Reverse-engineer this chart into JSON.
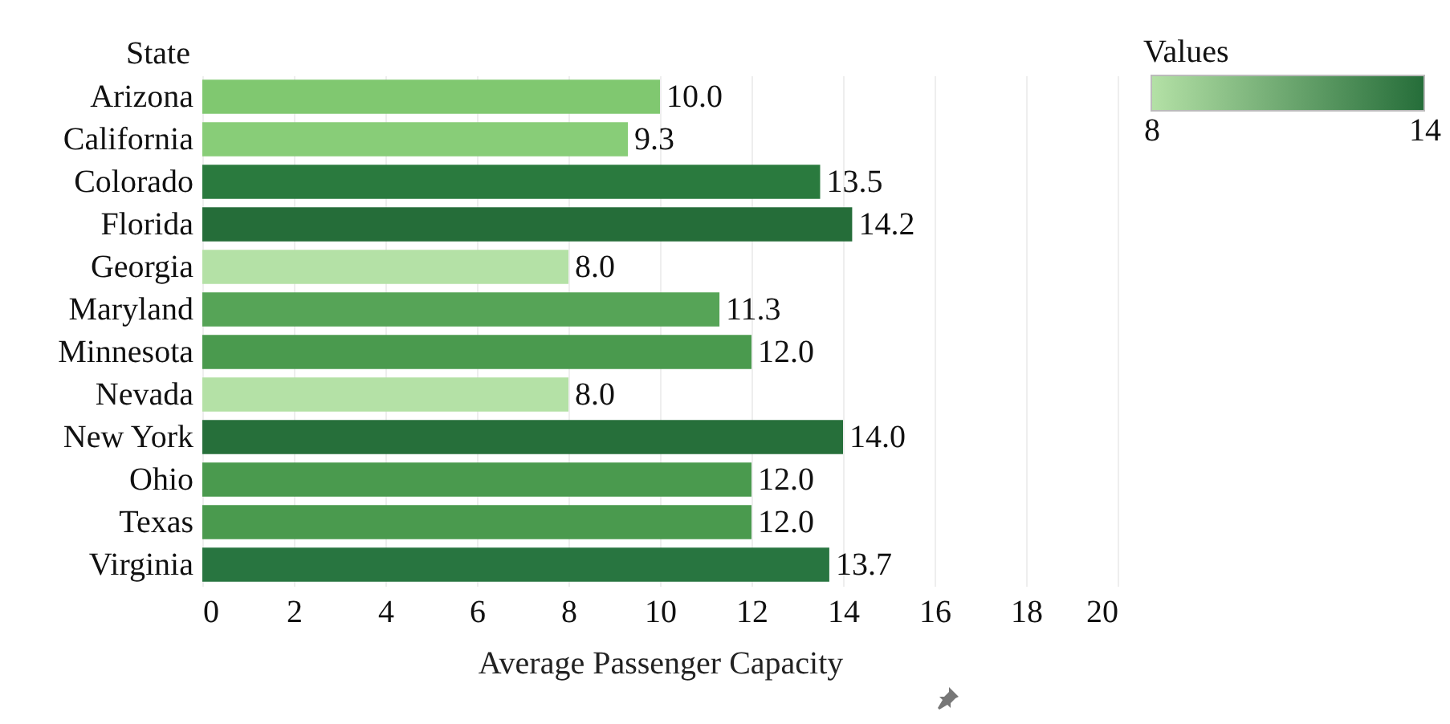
{
  "chart_data": {
    "type": "bar",
    "orientation": "horizontal",
    "ylabel": "State",
    "xlabel": "Average Passenger Capacity",
    "clabel": "Values",
    "clim": [
      8,
      14
    ],
    "cticks": [
      8,
      14
    ],
    "categories": [
      "Arizona",
      "California",
      "Colorado",
      "Florida",
      "Georgia",
      "Maryland",
      "Minnesota",
      "Nevada",
      "New York",
      "Ohio",
      "Texas",
      "Virginia"
    ],
    "values": [
      10.0,
      9.3,
      13.5,
      14.2,
      8.0,
      11.3,
      12.0,
      8.0,
      14.0,
      12.0,
      12.0,
      13.7
    ],
    "value_labels": [
      "10.0",
      "9.3",
      "13.5",
      "14.2",
      "8.0",
      "11.3",
      "12.0",
      "8.0",
      "14.0",
      "12.0",
      "12.0",
      "13.7"
    ],
    "colors": [
      "#80c870",
      "#88cd78",
      "#2a7a3e",
      "#256d39",
      "#b4e1a6",
      "#56a457",
      "#4a9a4e",
      "#b4e1a6",
      "#266f3a",
      "#4a9a4e",
      "#4a9a4e",
      "#287540"
    ],
    "xlim": [
      0,
      20
    ],
    "xticks": [
      0,
      2,
      4,
      6,
      8,
      10,
      12,
      14,
      16,
      18,
      20
    ],
    "grid": "x"
  }
}
